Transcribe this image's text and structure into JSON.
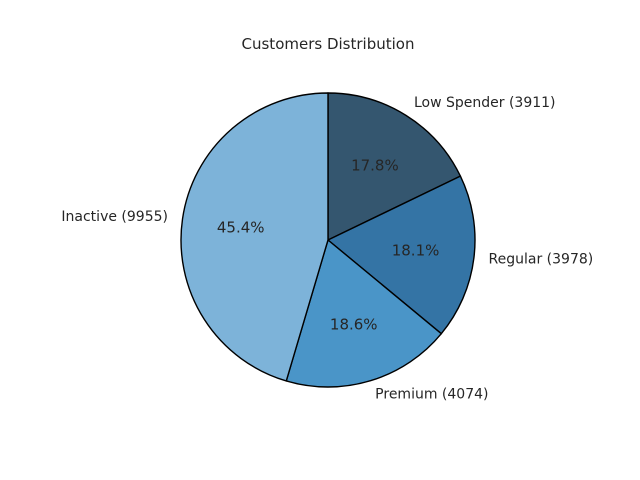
{
  "chart_data": {
    "type": "pie",
    "title": "Customers Distribution",
    "categories": [
      "Low Spender (3911)",
      "Regular (3978)",
      "Premium (4074)",
      "Inactive (9955)"
    ],
    "values": [
      3911,
      3978,
      4074,
      9955
    ],
    "percent_labels": [
      "17.8%",
      "18.1%",
      "18.6%",
      "45.4%"
    ],
    "colors": [
      "#34566f",
      "#3474a5",
      "#4a95c8",
      "#7db3d9"
    ],
    "edge_color": "#000000",
    "start_angle_deg": 90,
    "direction": "clockwise",
    "legend": "none"
  }
}
